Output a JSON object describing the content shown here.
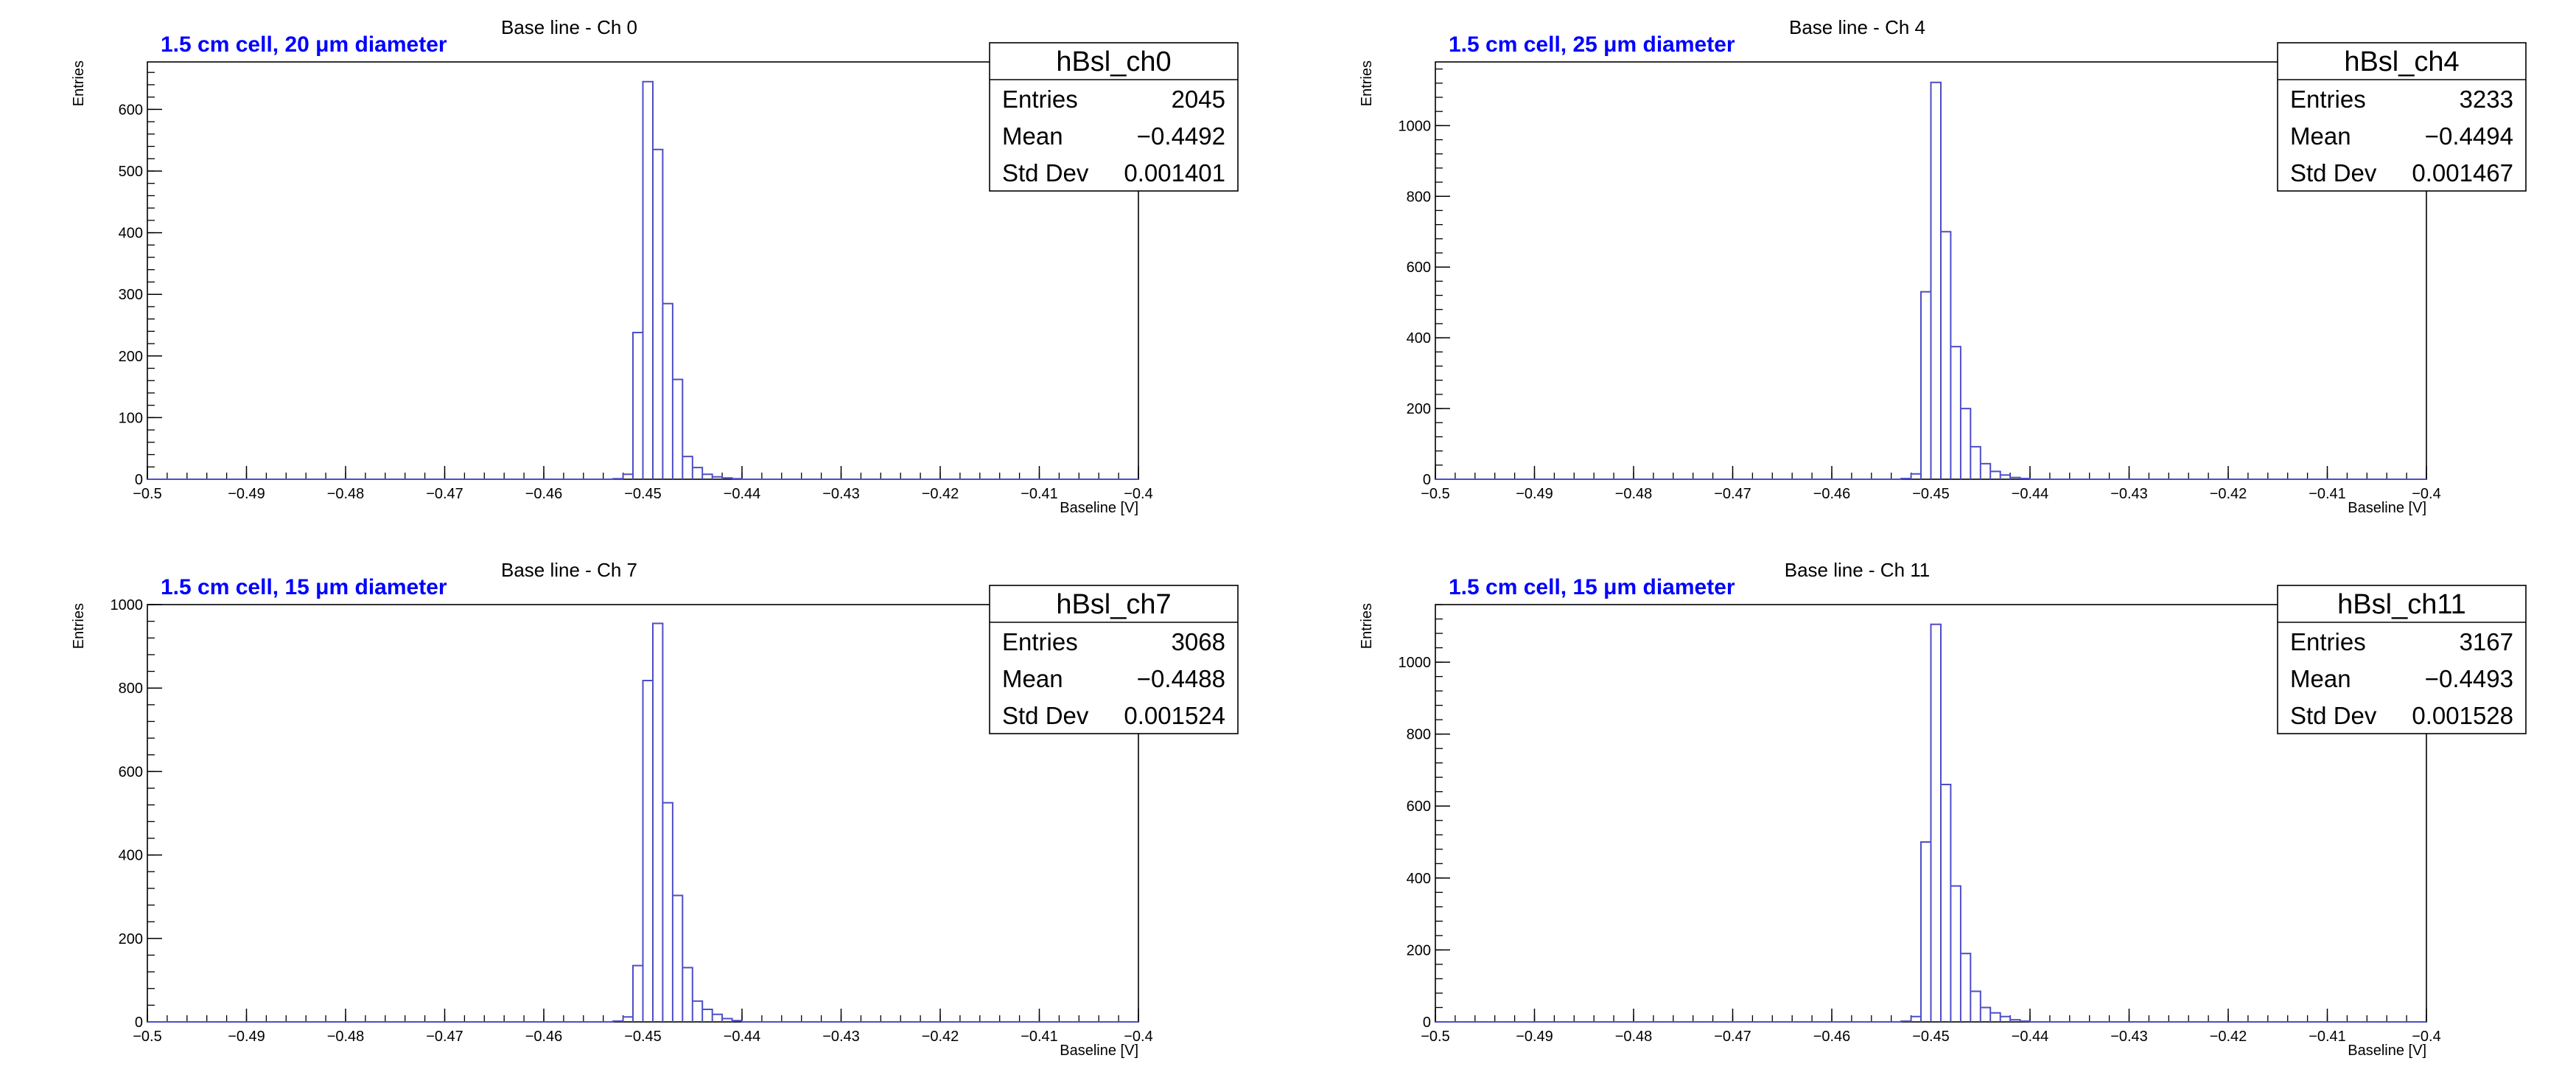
{
  "chart_data": [
    {
      "type": "bar",
      "title": "Base line - Ch 0",
      "annotation": "1.5 cm cell, 20  μm diameter",
      "annotation_color": "#0000ff",
      "xlabel": "Baseline [V]",
      "ylabel": "Entries",
      "xlim": [
        -0.5,
        -0.4
      ],
      "ylim": [
        0,
        677
      ],
      "x_ticks": [
        -0.5,
        -0.49,
        -0.48,
        -0.47,
        -0.46,
        -0.45,
        -0.44,
        -0.43,
        -0.42,
        -0.41,
        -0.4
      ],
      "x_tick_labels": [
        "−0.5",
        "−0.49",
        "−0.48",
        "−0.47",
        "−0.46",
        "−0.45",
        "−0.44",
        "−0.43",
        "−0.42",
        "−0.41",
        "−0.4"
      ],
      "y_ticks": [
        0,
        100,
        200,
        300,
        400,
        500,
        600
      ],
      "y_tick_labels": [
        "0",
        "100",
        "200",
        "300",
        "400",
        "500",
        "600"
      ],
      "line_color": "#4e4ec8",
      "x": [
        -0.453,
        -0.452,
        -0.451,
        -0.45,
        -0.449,
        -0.448,
        -0.447,
        -0.446,
        -0.445,
        -0.444,
        -0.443,
        -0.442,
        -0.441
      ],
      "values": [
        1,
        8,
        238,
        645,
        535,
        285,
        162,
        37,
        19,
        8,
        4,
        2,
        1
      ],
      "bin_width": 0.001,
      "legend": "top-right",
      "stats": {
        "name": "hBsl_ch0",
        "rows": [
          {
            "label": "Entries",
            "value": "2045"
          },
          {
            "label": "Mean",
            "value": "−0.4492"
          },
          {
            "label": "Std Dev",
            "value": "0.001401"
          }
        ]
      }
    },
    {
      "type": "bar",
      "title": "Base line - Ch 4",
      "annotation": "1.5 cm cell, 25  μm diameter",
      "annotation_color": "#0000ff",
      "xlabel": "Baseline [V]",
      "ylabel": "Entries",
      "xlim": [
        -0.5,
        -0.4
      ],
      "ylim": [
        0,
        1180
      ],
      "x_ticks": [
        -0.5,
        -0.49,
        -0.48,
        -0.47,
        -0.46,
        -0.45,
        -0.44,
        -0.43,
        -0.42,
        -0.41,
        -0.4
      ],
      "x_tick_labels": [
        "−0.5",
        "−0.49",
        "−0.48",
        "−0.47",
        "−0.46",
        "−0.45",
        "−0.44",
        "−0.43",
        "−0.42",
        "−0.41",
        "−0.4"
      ],
      "y_ticks": [
        0,
        200,
        400,
        600,
        800,
        1000
      ],
      "y_tick_labels": [
        "0",
        "200",
        "400",
        "600",
        "800",
        "1000"
      ],
      "line_color": "#4e4ec8",
      "x": [
        -0.453,
        -0.452,
        -0.451,
        -0.45,
        -0.449,
        -0.448,
        -0.447,
        -0.446,
        -0.445,
        -0.444,
        -0.443,
        -0.442,
        -0.441
      ],
      "values": [
        2,
        15,
        530,
        1122,
        700,
        375,
        200,
        92,
        44,
        22,
        12,
        5,
        2
      ],
      "bin_width": 0.001,
      "legend": "top-right",
      "stats": {
        "name": "hBsl_ch4",
        "rows": [
          {
            "label": "Entries",
            "value": "3233"
          },
          {
            "label": "Mean",
            "value": "−0.4494"
          },
          {
            "label": "Std Dev",
            "value": "0.001467"
          }
        ]
      }
    },
    {
      "type": "bar",
      "title": "Base line - Ch 7",
      "annotation": "1.5 cm cell, 15  μm diameter",
      "annotation_color": "#0000ff",
      "xlabel": "Baseline [V]",
      "ylabel": "Entries",
      "xlim": [
        -0.5,
        -0.4
      ],
      "ylim": [
        0,
        1000
      ],
      "x_ticks": [
        -0.5,
        -0.49,
        -0.48,
        -0.47,
        -0.46,
        -0.45,
        -0.44,
        -0.43,
        -0.42,
        -0.41,
        -0.4
      ],
      "x_tick_labels": [
        "−0.5",
        "−0.49",
        "−0.48",
        "−0.47",
        "−0.46",
        "−0.45",
        "−0.44",
        "−0.43",
        "−0.42",
        "−0.41",
        "−0.4"
      ],
      "y_ticks": [
        0,
        200,
        400,
        600,
        800,
        1000
      ],
      "y_tick_labels": [
        "0",
        "200",
        "400",
        "600",
        "800",
        "1000"
      ],
      "line_color": "#4e4ec8",
      "x": [
        -0.453,
        -0.452,
        -0.451,
        -0.45,
        -0.449,
        -0.448,
        -0.447,
        -0.446,
        -0.445,
        -0.444,
        -0.443,
        -0.442,
        -0.441
      ],
      "values": [
        2,
        12,
        135,
        818,
        955,
        525,
        303,
        130,
        50,
        30,
        18,
        8,
        3
      ],
      "bin_width": 0.001,
      "legend": "top-right",
      "stats": {
        "name": "hBsl_ch7",
        "rows": [
          {
            "label": "Entries",
            "value": "3068"
          },
          {
            "label": "Mean",
            "value": "−0.4488"
          },
          {
            "label": "Std Dev",
            "value": "0.001524"
          }
        ]
      }
    },
    {
      "type": "bar",
      "title": "Base line - Ch 11",
      "annotation": "1.5 cm cell, 15  μm diameter",
      "annotation_color": "#0000ff",
      "xlabel": "Baseline [V]",
      "ylabel": "Entries",
      "xlim": [
        -0.5,
        -0.4
      ],
      "ylim": [
        0,
        1160
      ],
      "x_ticks": [
        -0.5,
        -0.49,
        -0.48,
        -0.47,
        -0.46,
        -0.45,
        -0.44,
        -0.43,
        -0.42,
        -0.41,
        -0.4
      ],
      "x_tick_labels": [
        "−0.5",
        "−0.49",
        "−0.48",
        "−0.47",
        "−0.46",
        "−0.45",
        "−0.44",
        "−0.43",
        "−0.42",
        "−0.41",
        "−0.4"
      ],
      "y_ticks": [
        0,
        200,
        400,
        600,
        800,
        1000
      ],
      "y_tick_labels": [
        "0",
        "200",
        "400",
        "600",
        "800",
        "1000"
      ],
      "line_color": "#4e4ec8",
      "x": [
        -0.453,
        -0.452,
        -0.451,
        -0.45,
        -0.449,
        -0.448,
        -0.447,
        -0.446,
        -0.445,
        -0.444,
        -0.443,
        -0.442,
        -0.441
      ],
      "values": [
        2,
        15,
        500,
        1105,
        660,
        378,
        190,
        85,
        40,
        25,
        15,
        6,
        2
      ],
      "bin_width": 0.001,
      "legend": "top-right",
      "stats": {
        "name": "hBsl_ch11",
        "rows": [
          {
            "label": "Entries",
            "value": "3167"
          },
          {
            "label": "Mean",
            "value": "−0.4493"
          },
          {
            "label": "Std Dev",
            "value": "0.001528"
          }
        ]
      }
    }
  ]
}
